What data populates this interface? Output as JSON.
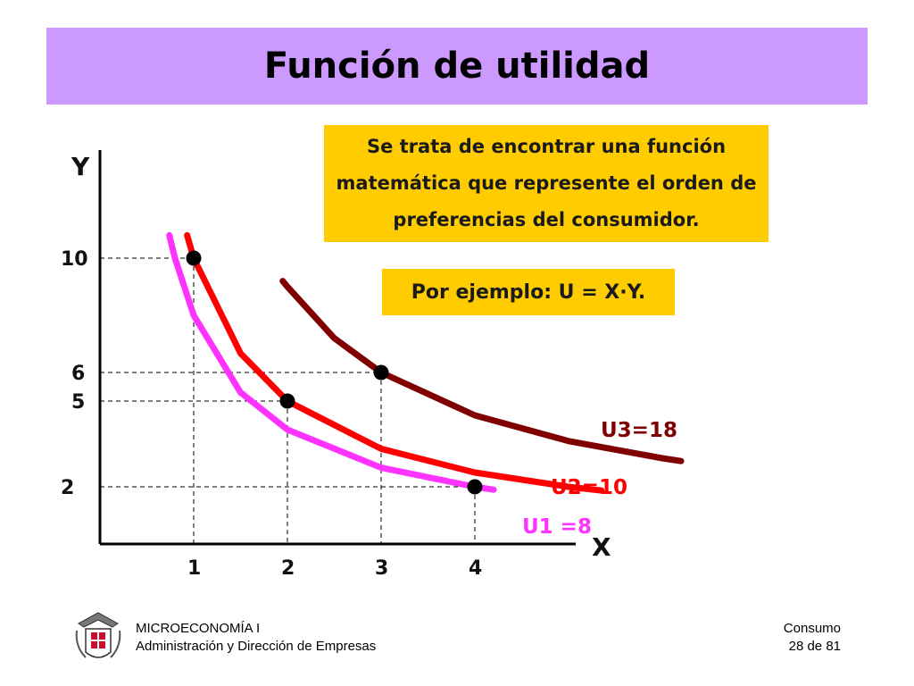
{
  "slide": {
    "title": "Función de utilidad",
    "callout_main": "Se trata de encontrar una función matemática que represente el orden de preferencias del consumidor.",
    "callout_example": "Por ejemplo: U = X·Y."
  },
  "footer": {
    "course": "MICROECONOMÍA I",
    "program": "Administración y Dirección de Empresas",
    "section": "Consumo",
    "page": "28 de 81"
  },
  "colors": {
    "title_bar": "#cc99ff",
    "callout": "#ffcc00",
    "u1": "#ff33ff",
    "u2": "#ff0000",
    "u3": "#800000"
  },
  "chart_data": {
    "type": "line",
    "title": "",
    "xlabel": "X",
    "ylabel": "Y",
    "x_ticks": [
      "1",
      "2",
      "3",
      "4"
    ],
    "y_ticks": [
      "2",
      "5",
      "6",
      "10"
    ],
    "grid": false,
    "series": [
      {
        "name": "U1 =8",
        "utility": 8,
        "color": "#ff33ff",
        "x": [
          0.74,
          0.8,
          1,
          1.5,
          2,
          3,
          4,
          4.2
        ],
        "y": [
          10.8,
          10,
          8,
          5.3,
          4,
          2.67,
          2,
          1.9
        ]
      },
      {
        "name": "U2=10",
        "utility": 10,
        "color": "#ff0000",
        "x": [
          0.93,
          1,
          1.5,
          2,
          3,
          4,
          5,
          5.35
        ],
        "y": [
          10.8,
          10,
          6.67,
          5,
          3.33,
          2.5,
          2,
          1.87
        ]
      },
      {
        "name": "U3=18",
        "utility": 18,
        "color": "#800000",
        "x": [
          1.95,
          2,
          2.5,
          3,
          4,
          5,
          6,
          6.2
        ],
        "y": [
          9.2,
          9,
          7.2,
          6,
          4.5,
          3.6,
          3,
          2.9
        ]
      }
    ],
    "points": [
      {
        "x": 1,
        "y": 10
      },
      {
        "x": 2,
        "y": 5
      },
      {
        "x": 3,
        "y": 6
      },
      {
        "x": 4,
        "y": 2
      }
    ]
  }
}
